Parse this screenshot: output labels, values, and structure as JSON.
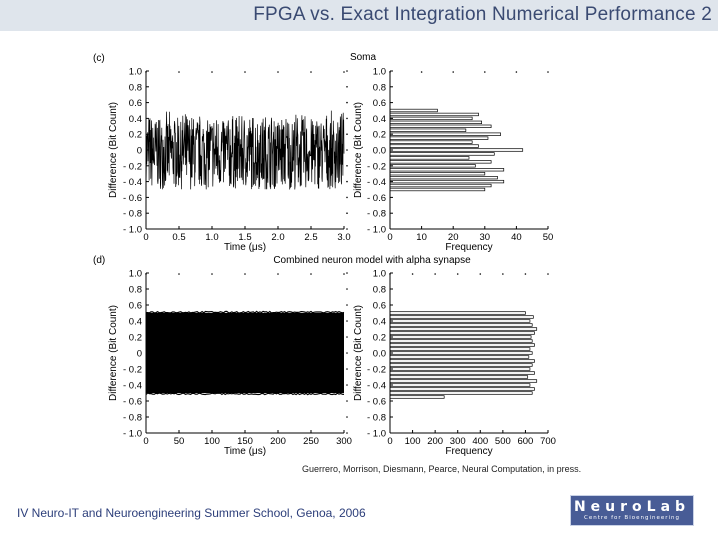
{
  "slide": {
    "title": "FPGA vs. Exact Integration Numerical Performance 2",
    "citation": "Guerrero, Morrison, Diesmann, Pearce, Neural Computation, in press.",
    "footer": "IV Neuro-IT and Neuroengineering Summer School, Genoa, 2006",
    "logo_main": "NeuroLab",
    "logo_sub": "Centre for Bioengineering",
    "colors": {
      "title_bar": "#dfe5ec",
      "title_text": "#3a4a72",
      "logo_bg": "#485c96",
      "footer_text": "#2c3e7a"
    }
  },
  "chart_data": [
    {
      "panel": "(c)",
      "title": "Soma",
      "type": "line",
      "xlabel": "Time (μs)",
      "ylabel": "Difference (Bit Count)",
      "x_ticks": [
        "0",
        "0.5",
        "1.0",
        "1.5",
        "2.0",
        "2.5",
        "3.0"
      ],
      "y_ticks": [
        "- 1.0",
        "- 0.8",
        "- 0.6",
        "- 0.4",
        "- 0.2",
        "0",
        "0.2",
        "0.4",
        "0.6",
        "0.8",
        "1.0"
      ],
      "xlim": [
        0,
        3.0
      ],
      "ylim": [
        -1.0,
        1.0
      ],
      "signal": {
        "description": "dense fluctuation",
        "min": -0.5,
        "max": 0.5
      }
    },
    {
      "panel": "(c)",
      "type": "bar",
      "orientation": "horizontal",
      "xlabel": "Frequency",
      "ylabel": "Difference (Bit Count)",
      "x_ticks": [
        "0",
        "10",
        "20",
        "30",
        "40",
        "50"
      ],
      "y_ticks": [
        "- 1.0",
        "- 0.8",
        "- 0.6",
        "- 0.4",
        "- 0.2",
        "0.0",
        "0.2",
        "0.4",
        "0.6",
        "0.8",
        "1.0"
      ],
      "xlim": [
        0,
        50
      ],
      "ylim": [
        -1.0,
        1.0
      ],
      "bins": [
        -0.5,
        -0.45,
        -0.4,
        -0.35,
        -0.3,
        -0.25,
        -0.2,
        -0.15,
        -0.1,
        -0.05,
        0.0,
        0.05,
        0.1,
        0.15,
        0.2,
        0.25,
        0.3,
        0.35,
        0.4,
        0.45,
        0.5
      ],
      "values": [
        30,
        32,
        36,
        34,
        30,
        36,
        27,
        32,
        25,
        33,
        42,
        28,
        26,
        31,
        35,
        24,
        32,
        29,
        26,
        28,
        15
      ]
    },
    {
      "panel": "(d)",
      "title": "Combined neuron model with alpha synapse",
      "type": "line",
      "xlabel": "Time (μs)",
      "ylabel": "Difference (Bit Count)",
      "x_ticks": [
        "0",
        "50",
        "100",
        "150",
        "200",
        "250",
        "300"
      ],
      "y_ticks": [
        "- 1.0",
        "- 0.8",
        "- 0.6",
        "- 0.4",
        "- 0.2",
        "0",
        "0.2",
        "0.4",
        "0.6",
        "0.8",
        "1.0"
      ],
      "xlim": [
        0,
        300
      ],
      "ylim": [
        -1.0,
        1.0
      ],
      "signal": {
        "description": "dense band",
        "min": -0.5,
        "max": 0.5
      }
    },
    {
      "panel": "(d)",
      "type": "bar",
      "orientation": "horizontal",
      "xlabel": "Frequency",
      "ylabel": "Difference (Bit Count)",
      "x_ticks": [
        "0",
        "100",
        "200",
        "300",
        "400",
        "500",
        "600",
        "700"
      ],
      "y_ticks": [
        "- 1.0",
        "- 0.8",
        "- 0.6",
        "- 0.4",
        "- 0.2",
        "0.0",
        "0.2",
        "0.4",
        "0.6",
        "0.8",
        "1.0"
      ],
      "xlim": [
        0,
        700
      ],
      "ylim": [
        -1.0,
        1.0
      ],
      "bins": [
        -0.55,
        -0.5,
        -0.45,
        -0.4,
        -0.35,
        -0.3,
        -0.25,
        -0.2,
        -0.15,
        -0.1,
        -0.05,
        0.0,
        0.05,
        0.1,
        0.15,
        0.2,
        0.25,
        0.3,
        0.35,
        0.4,
        0.45,
        0.5
      ],
      "values": [
        240,
        630,
        640,
        620,
        650,
        610,
        640,
        620,
        630,
        640,
        615,
        630,
        620,
        640,
        630,
        625,
        640,
        650,
        630,
        620,
        635,
        600
      ]
    }
  ]
}
